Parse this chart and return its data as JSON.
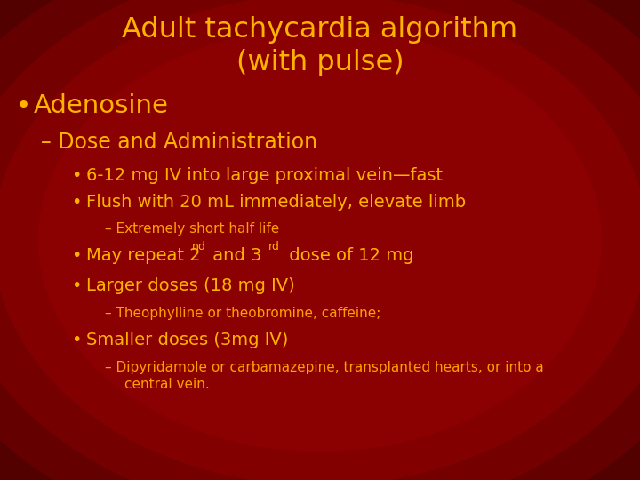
{
  "title_line1": "Adult tachycardia algorithm",
  "title_line2": "(with pulse)",
  "title_color": "#FFB300",
  "title_fontsize": 24,
  "bg_color_edge": "#050000",
  "text_color_large": "#FFB300",
  "text_color_small": "#FFA000",
  "bullet1": "Adenosine",
  "sub1": "Dose and Administration",
  "sub1_bullet1": "6-12 mg IV into large proximal vein—fast",
  "sub1_bullet2": "Flush with 20 mL immediately, elevate limb",
  "sub1_dash1": "Extremely short half life",
  "sub1_bullet4": "Larger doses (18 mg IV)",
  "sub1_dash2": "Theophylline or theobromine, caffeine;",
  "sub1_bullet5": "Smaller doses (3mg IV)",
  "sub1_dash3_line1": "Dipyridamole or carbamazepine, transplanted hearts, or into a",
  "sub1_dash3_line2": "central vein.",
  "gradient_colors": [
    "#050000",
    "#150000",
    "#280000",
    "#3c0000",
    "#520000",
    "#650000",
    "#750000",
    "#820000",
    "#8B0000"
  ],
  "font_family": "DejaVu Sans"
}
